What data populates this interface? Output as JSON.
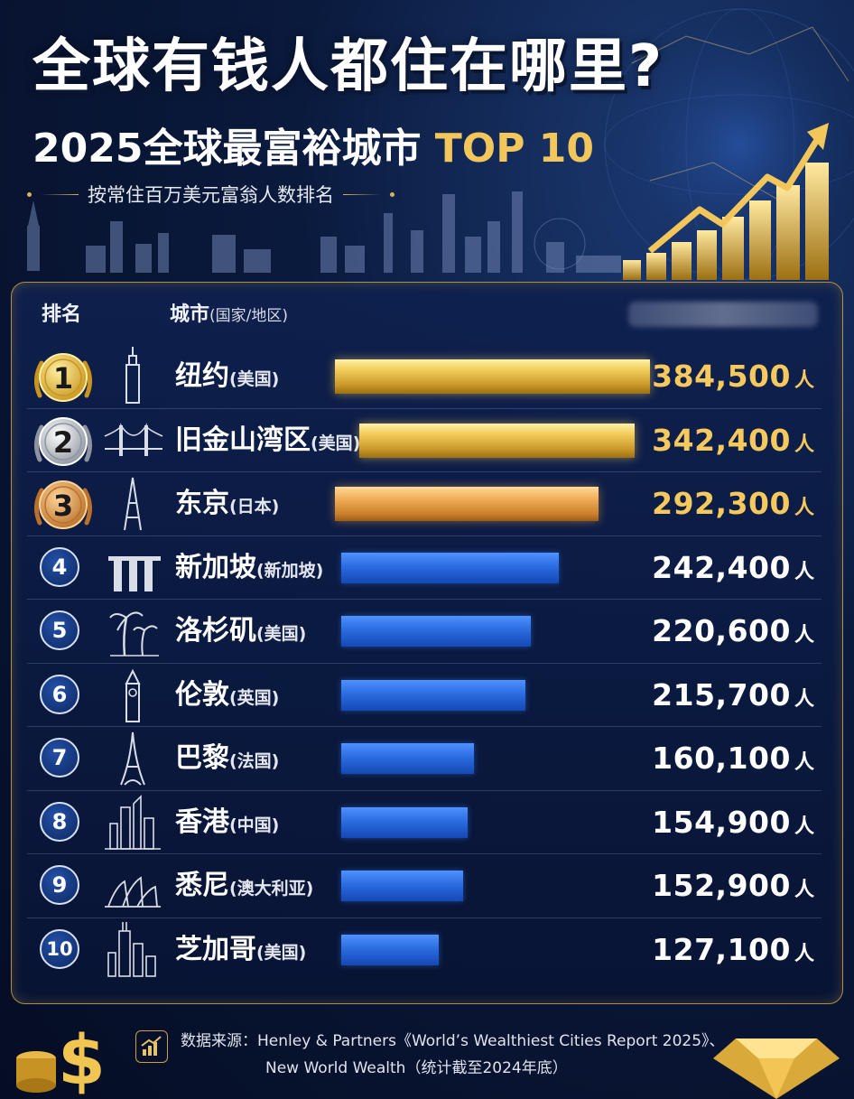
{
  "title_line1": "全球有钱人都住在哪里?",
  "title_line2_white": "2025全球最富裕城市",
  "title_line2_gold": "TOP 10",
  "subtitle": "按常住百万美元富翁人数排名",
  "headers": {
    "rank": "排名",
    "city": "城市",
    "city_sub": "(国家/地区)"
  },
  "unit": "人",
  "source_line1": "数据来源：Henley & Partners《World’s Wealthiest Cities Report 2025》、",
  "source_line2": "New World Wealth（统计截至2024年底）",
  "colors": {
    "gold": "#f3c65c",
    "bronze": "#e29a45",
    "blue": "#2b6ce0",
    "background": "#0a1a3d"
  },
  "chart_data": {
    "type": "bar",
    "orientation": "horizontal",
    "categories": [
      "纽约",
      "旧金山湾区",
      "东京",
      "新加坡",
      "洛杉矶",
      "伦敦",
      "巴黎",
      "香港",
      "悉尼",
      "芝加哥"
    ],
    "values": [
      384500,
      342400,
      292300,
      242400,
      220600,
      215700,
      160100,
      154900,
      152900,
      127100
    ],
    "title": "2025全球最富裕城市TOP 10",
    "subtitle": "按常住百万美元富翁人数排名",
    "xlabel": "",
    "ylabel": "",
    "rows": [
      {
        "rank": "1",
        "city": "纽约",
        "country": "(美国)",
        "value_label": "384,500",
        "value": 384500,
        "icon": "empire-state-icon",
        "medal": "gold"
      },
      {
        "rank": "2",
        "city": "旧金山湾区",
        "country": "(美国)",
        "value_label": "342,400",
        "value": 342400,
        "icon": "golden-gate-icon",
        "medal": "silver"
      },
      {
        "rank": "3",
        "city": "东京",
        "country": "(日本)",
        "value_label": "292,300",
        "value": 292300,
        "icon": "tokyo-tower-icon",
        "medal": "bronze"
      },
      {
        "rank": "4",
        "city": "新加坡",
        "country": "(新加坡)",
        "value_label": "242,400",
        "value": 242400,
        "icon": "marina-bay-sands-icon",
        "medal": ""
      },
      {
        "rank": "5",
        "city": "洛杉矶",
        "country": "(美国)",
        "value_label": "220,600",
        "value": 220600,
        "icon": "palm-trees-icon",
        "medal": ""
      },
      {
        "rank": "6",
        "city": "伦敦",
        "country": "(英国)",
        "value_label": "215,700",
        "value": 215700,
        "icon": "big-ben-icon",
        "medal": ""
      },
      {
        "rank": "7",
        "city": "巴黎",
        "country": "(法国)",
        "value_label": "160,100",
        "value": 160100,
        "icon": "eiffel-tower-icon",
        "medal": ""
      },
      {
        "rank": "8",
        "city": "香港",
        "country": "(中国)",
        "value_label": "154,900",
        "value": 154900,
        "icon": "hk-skyline-icon",
        "medal": ""
      },
      {
        "rank": "9",
        "city": "悉尼",
        "country": "(澳大利亚)",
        "value_label": "152,900",
        "value": 152900,
        "icon": "opera-house-icon",
        "medal": ""
      },
      {
        "rank": "10",
        "city": "芝加哥",
        "country": "(美国)",
        "value_label": "127,100",
        "value": 127100,
        "icon": "chicago-skyline-icon",
        "medal": ""
      }
    ]
  }
}
